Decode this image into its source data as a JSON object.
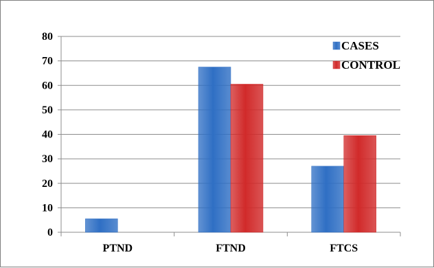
{
  "chart_data": {
    "type": "bar",
    "categories": [
      "PTND",
      "FTND",
      "FTCS"
    ],
    "series": [
      {
        "name": "CASES",
        "values": [
          5.5,
          67.5,
          27
        ],
        "color": "#2f6fc4"
      },
      {
        "name": "CONTROL",
        "values": [
          0,
          60.5,
          39.5
        ],
        "color": "#d12a2a"
      }
    ],
    "ylim": [
      0,
      80
    ],
    "yticks": [
      0,
      10,
      20,
      30,
      40,
      50,
      60,
      70,
      80
    ],
    "grid": true,
    "legend_position": "top-right",
    "title": "",
    "xlabel": "",
    "ylabel": ""
  }
}
